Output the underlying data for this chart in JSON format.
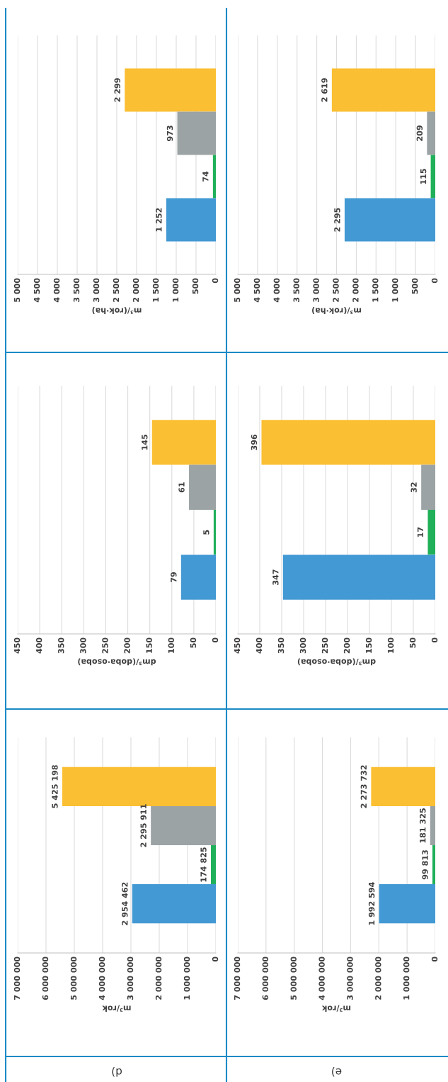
{
  "chart_data": [
    {
      "type": "bar",
      "orientation": "horizontal",
      "xlabel": "m³/(rok·ha)",
      "categories": [
        null,
        null,
        null,
        null
      ],
      "values": [
        2299,
        973,
        74,
        1252
      ],
      "colors": [
        "#fbbf33",
        "#9ca3a5",
        "#21b05a",
        "#4399d3"
      ],
      "value_labels": [
        "2 299",
        "973",
        "74",
        "1 252"
      ],
      "xlim": [
        5000,
        0
      ],
      "xticks": [
        {
          "value": 5000,
          "label": "5 000"
        },
        {
          "value": 4500,
          "label": "4 500"
        },
        {
          "value": 4000,
          "label": "4 000"
        },
        {
          "value": 3500,
          "label": "3 500"
        },
        {
          "value": 3000,
          "label": "3 000"
        },
        {
          "value": 2500,
          "label": "2 500"
        },
        {
          "value": 2000,
          "label": "2 000"
        },
        {
          "value": 1500,
          "label": "1 500"
        },
        {
          "value": 1000,
          "label": "1 000"
        },
        500,
        0
      ],
      "grid": "x",
      "tick_labels": "x"
    },
    {
      "type": "bar",
      "orientation": "horizontal",
      "xlabel": "m³/(rok·ha)",
      "categories": [
        null,
        null,
        null,
        null
      ],
      "values": [
        2619,
        209,
        115,
        2295
      ],
      "colors": [
        "#fbbf33",
        "#9ca3a5",
        "#21b05a",
        "#4399d3"
      ],
      "value_labels": [
        "2 619",
        "209",
        "115",
        "2 295"
      ],
      "xlim": [
        5000,
        0
      ],
      "xticks": [
        {
          "value": 5000,
          "label": "5 000"
        },
        {
          "value": 4500,
          "label": "4 500"
        },
        {
          "value": 4000,
          "label": "4 000"
        },
        {
          "value": 3500,
          "label": "3 500"
        },
        {
          "value": 3000,
          "label": "3 000"
        },
        {
          "value": 2500,
          "label": "2 500"
        },
        {
          "value": 2000,
          "label": "2 000"
        },
        {
          "value": 1500,
          "label": "1 500"
        },
        {
          "value": 1000,
          "label": "1 000"
        },
        500,
        0
      ],
      "grid": "x",
      "tick_labels": "x"
    },
    {
      "type": "bar",
      "orientation": "horizontal",
      "xlabel": "dm³/(doba·osoba)",
      "categories": [
        null,
        null,
        null,
        null
      ],
      "values": [
        145,
        61,
        5,
        79
      ],
      "colors": [
        "#fbbf33",
        "#9ca3a5",
        "#21b05a",
        "#4399d3"
      ],
      "data_labels": true,
      "xlim": [
        450,
        0
      ],
      "xticks": [
        450,
        400,
        350,
        300,
        250,
        200,
        150,
        100,
        50,
        0
      ],
      "grid": "x",
      "tick_labels": "x"
    },
    {
      "type": "bar",
      "orientation": "horizontal",
      "xlabel": "dm³/(doba·osoba)",
      "categories": [
        null,
        null,
        null,
        null
      ],
      "values": [
        396,
        32,
        17,
        347
      ],
      "colors": [
        "#fbbf33",
        "#9ca3a5",
        "#21b05a",
        "#4399d3"
      ],
      "data_labels": true,
      "xlim": [
        450,
        0
      ],
      "xticks": [
        450,
        400,
        350,
        300,
        250,
        200,
        150,
        100,
        50,
        0
      ],
      "grid": "x",
      "tick_labels": "x"
    },
    {
      "type": "bar",
      "orientation": "horizontal",
      "title": "d)",
      "xlabel": "m³/rok",
      "categories": [
        null,
        null,
        null,
        null
      ],
      "values": [
        5425198,
        2295911,
        174825,
        2954462
      ],
      "colors": [
        "#fbbf33",
        "#9ca3a5",
        "#21b05a",
        "#4399d3"
      ],
      "value_labels": [
        "5 425 198",
        "2 295 911",
        "174 825",
        "2 954 462"
      ],
      "xlim": [
        7000000,
        0
      ],
      "xticks": [
        {
          "value": 7000000,
          "label": "7 000 000"
        },
        {
          "value": 6000000,
          "label": "6 000 000"
        },
        {
          "value": 5000000,
          "label": "5 000 000"
        },
        {
          "value": 4000000,
          "label": "4 000 000"
        },
        {
          "value": 3000000,
          "label": "3 000 000"
        },
        {
          "value": 2000000,
          "label": "2 000 000"
        },
        {
          "value": 1000000,
          "label": "1 000 000"
        },
        0
      ],
      "grid": "x",
      "tick_labels": "x"
    },
    {
      "type": "bar",
      "orientation": "horizontal",
      "title": "e)",
      "xlabel": "m³/rok",
      "categories": [
        null,
        null,
        null,
        null
      ],
      "values": [
        2273732,
        181325,
        99813,
        1992594
      ],
      "colors": [
        "#fbbf33",
        "#9ca3a5",
        "#21b05a",
        "#4399d3"
      ],
      "value_labels": [
        "2 273 732",
        "181 325",
        "99 813",
        "1 992 594"
      ],
      "xlim": [
        7000000,
        0
      ],
      "xticks": [
        {
          "value": 7000000,
          "label": "7 000 000"
        },
        {
          "value": 6000000,
          "label": "6 000 000"
        },
        {
          "value": 5000000,
          "label": "5 000 000"
        },
        {
          "value": 4000000,
          "label": "4 000 000"
        },
        {
          "value": 3000000,
          "label": "3 000 000"
        },
        {
          "value": 2000000,
          "label": "2 000 000"
        },
        {
          "value": 1000000,
          "label": "1 000 000"
        },
        0
      ],
      "grid": "x",
      "tick_labels": "x"
    }
  ]
}
